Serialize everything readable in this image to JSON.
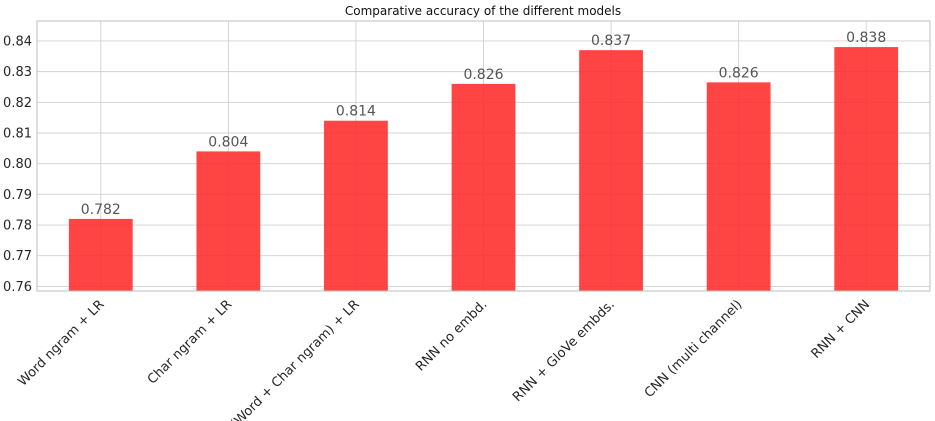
{
  "chart_data": {
    "type": "bar",
    "title": "Comparative accuracy of the different models",
    "xlabel": "",
    "ylabel": "",
    "categories": [
      "Word ngram + LR",
      "Char ngram + LR",
      "(Word + Char ngram) + LR",
      "RNN no embd.",
      "RNN + GloVe embds.",
      "CNN (multi channel)",
      "RNN + CNN"
    ],
    "values": [
      0.782,
      0.804,
      0.814,
      0.826,
      0.837,
      0.8265,
      0.838
    ],
    "data_labels": [
      "0.782",
      "0.804",
      "0.814",
      "0.826",
      "0.837",
      "0.826",
      "0.838"
    ],
    "ylim": [
      0.7585,
      0.8465
    ],
    "yticks": [
      0.76,
      0.77,
      0.78,
      0.79,
      0.8,
      0.81,
      0.82,
      0.83,
      0.84
    ],
    "ytick_labels": [
      "0.76",
      "0.77",
      "0.78",
      "0.79",
      "0.80",
      "0.81",
      "0.82",
      "0.83",
      "0.84"
    ],
    "bar_color": "#ff2a2a",
    "grid": true,
    "legend": "none"
  }
}
